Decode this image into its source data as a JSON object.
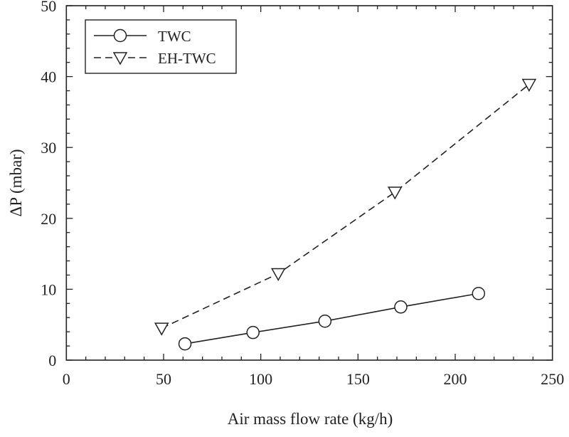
{
  "chart_data": {
    "type": "line",
    "title": "",
    "xlabel": "Air mass flow rate (kg/h)",
    "ylabel": "ΔP (mbar)",
    "xlim": [
      0,
      250
    ],
    "ylim": [
      0,
      50
    ],
    "xticks": [
      0,
      50,
      100,
      150,
      200,
      250
    ],
    "yticks": [
      0,
      10,
      20,
      30,
      40,
      50
    ],
    "grid": false,
    "legend_position": "top-left",
    "series": [
      {
        "name": "TWC",
        "marker": "circle",
        "line": "solid",
        "x": [
          61,
          96,
          133,
          172,
          212
        ],
        "y": [
          2.3,
          3.9,
          5.5,
          7.5,
          9.4
        ]
      },
      {
        "name": "EH-TWC",
        "marker": "triangle-down",
        "line": "dashed",
        "x": [
          49,
          109,
          169,
          238
        ],
        "y": [
          4.5,
          12.2,
          23.7,
          38.9
        ]
      }
    ]
  }
}
